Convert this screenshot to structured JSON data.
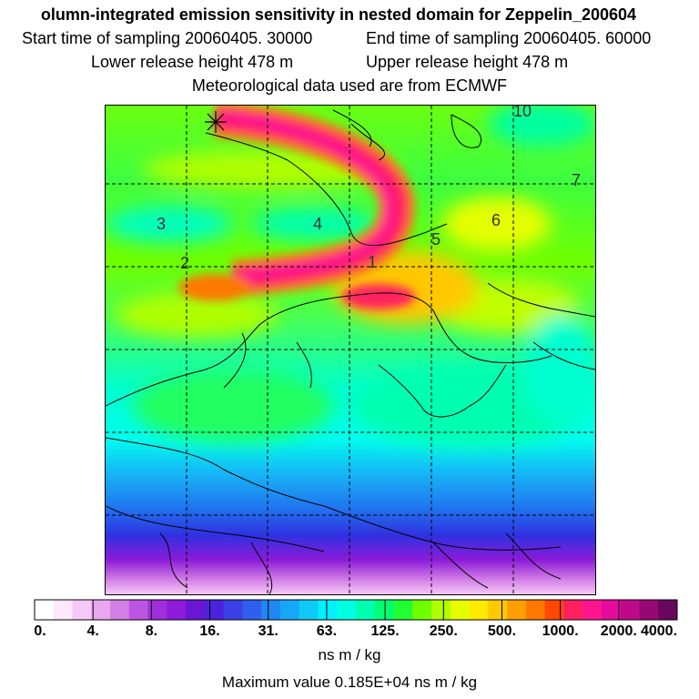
{
  "title": "olumn-integrated emission sensitivity in nested domain for Zeppelin_200604",
  "sampling": {
    "start": "Start time of sampling 20060405. 30000",
    "end": "End time of sampling 20060405. 60000"
  },
  "release": {
    "lower": "Lower release height  478 m",
    "upper": "Upper release height  478 m"
  },
  "met_source": "Meteorological data used are from ECMWF",
  "map_labels": [
    "10",
    "7",
    "6",
    "5",
    "4",
    "3",
    "2",
    "1"
  ],
  "colorbar": {
    "tick_labels": [
      "0.",
      "4.",
      "8.",
      "16.",
      "31.",
      "63.",
      "125.",
      "250.",
      "500.",
      "1000.",
      "2000.",
      "4000."
    ],
    "colors": [
      "#ffffff",
      "#fde8fd",
      "#f6c8f6",
      "#eaa6ee",
      "#d27fe6",
      "#bb55e2",
      "#a02edc",
      "#8d1bd8",
      "#6a16d4",
      "#4d22dc",
      "#3b3fe6",
      "#2f5fee",
      "#1f88f4",
      "#16a8f6",
      "#0fcaf8",
      "#00f0ff",
      "#00ffe0",
      "#00ffb0",
      "#00ff70",
      "#20ff30",
      "#70ff00",
      "#b0ff00",
      "#e6ff00",
      "#ffea00",
      "#ffc800",
      "#ffa000",
      "#ff7800",
      "#ff4800",
      "#ff2060",
      "#ff1490",
      "#e60a9e",
      "#c0098a",
      "#980874",
      "#6a065c"
    ],
    "units": "ns m / kg"
  },
  "max_value": "Maximum value  0.185E+04 ns m / kg"
}
